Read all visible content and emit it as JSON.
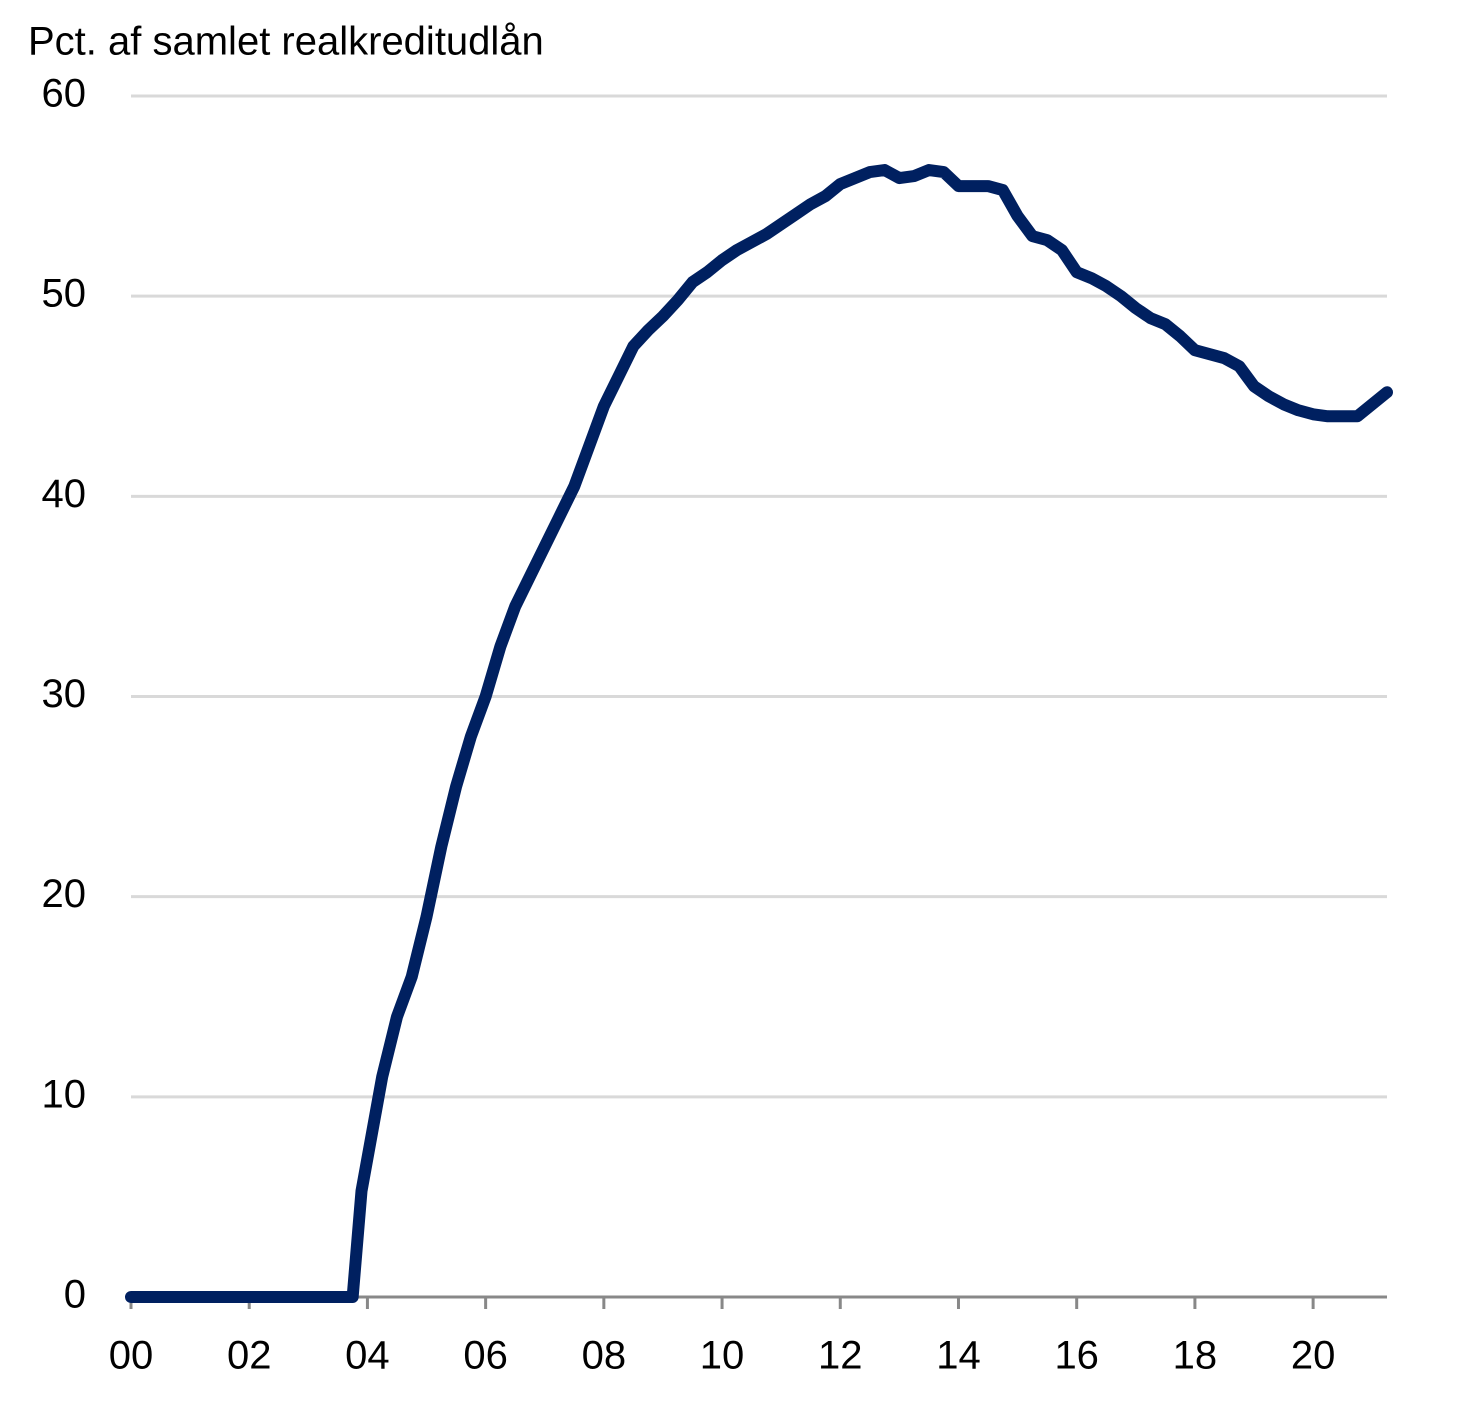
{
  "chart_data": {
    "type": "line",
    "y_label": "Pct. af samlet realkreditudlån",
    "x": [
      2000,
      2003.75,
      2003.9,
      2004.25,
      2004.5,
      2004.75,
      2005.0,
      2005.25,
      2005.5,
      2005.75,
      2006.0,
      2006.25,
      2006.5,
      2006.75,
      2007.0,
      2007.25,
      2007.5,
      2007.75,
      2008.0,
      2008.25,
      2008.5,
      2008.75,
      2009.0,
      2009.25,
      2009.5,
      2009.75,
      2010.0,
      2010.25,
      2010.5,
      2010.75,
      2011.0,
      2011.25,
      2011.5,
      2011.75,
      2012.0,
      2012.25,
      2012.5,
      2012.75,
      2013.0,
      2013.25,
      2013.5,
      2013.75,
      2014.0,
      2014.25,
      2014.5,
      2014.75,
      2015.0,
      2015.25,
      2015.5,
      2015.75,
      2016.0,
      2016.25,
      2016.5,
      2016.75,
      2017.0,
      2017.25,
      2017.5,
      2017.75,
      2018.0,
      2018.25,
      2018.5,
      2018.75,
      2019.0,
      2019.25,
      2019.5,
      2019.75,
      2020.0,
      2020.25,
      2020.5,
      2020.75,
      2021.0,
      2021.25
    ],
    "series": [
      {
        "name": "Realkreditudlån",
        "color": "#002060",
        "values": [
          0,
          0,
          5.3,
          11,
          14,
          16,
          19,
          22.5,
          25.5,
          28,
          30,
          32.5,
          34.5,
          36,
          37.5,
          39,
          40.5,
          42.5,
          44.5,
          46,
          47.5,
          48.3,
          49,
          49.8,
          50.7,
          51.2,
          51.8,
          52.3,
          52.7,
          53.1,
          53.6,
          54.1,
          54.6,
          55.0,
          55.6,
          55.9,
          56.2,
          56.3,
          55.9,
          56.0,
          56.3,
          56.2,
          55.5,
          55.5,
          55.5,
          55.3,
          54.0,
          53.0,
          52.8,
          52.3,
          51.2,
          50.9,
          50.5,
          50.0,
          49.4,
          48.9,
          48.6,
          48.0,
          47.3,
          47.1,
          46.9,
          46.5,
          45.5,
          45.0,
          44.6,
          44.3,
          44.1,
          44.0,
          44.0,
          44.0,
          44.6,
          45.2
        ]
      }
    ],
    "xlim": [
      2000,
      2021.25
    ],
    "xticks": [
      {
        "value": 2000,
        "label": "00"
      },
      {
        "value": 2002,
        "label": "02"
      },
      {
        "value": 2004,
        "label": "04"
      },
      {
        "value": 2006,
        "label": "06"
      },
      {
        "value": 2008,
        "label": "08"
      },
      {
        "value": 2010,
        "label": "10"
      },
      {
        "value": 2012,
        "label": "12"
      },
      {
        "value": 2014,
        "label": "14"
      },
      {
        "value": 2016,
        "label": "16"
      },
      {
        "value": 2018,
        "label": "18"
      },
      {
        "value": 2020,
        "label": "20"
      }
    ],
    "ylim": [
      0,
      60
    ],
    "yticks": [
      0,
      10,
      20,
      30,
      40,
      50,
      60
    ],
    "grid": true
  }
}
